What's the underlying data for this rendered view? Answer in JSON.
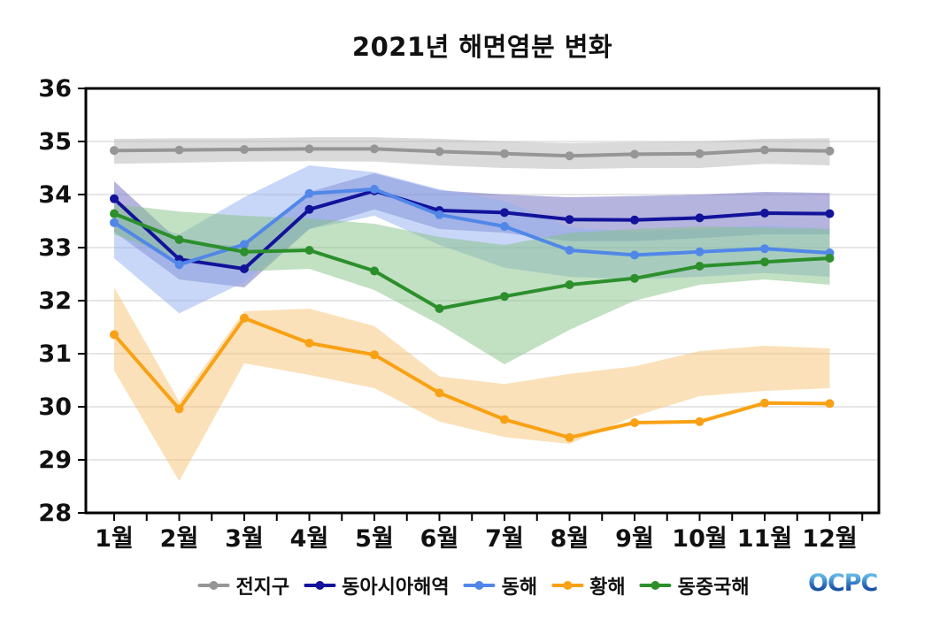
{
  "chart_data": {
    "type": "line",
    "title": "2021년 해면염분 변화",
    "xlabel": "",
    "ylabel": "",
    "ylim": [
      28,
      36
    ],
    "y_ticks": [
      36,
      35,
      34,
      33,
      32,
      31,
      30,
      29,
      28
    ],
    "grid": true,
    "legend_position": "bottom",
    "categories": [
      "1월",
      "2월",
      "3월",
      "4월",
      "5월",
      "6월",
      "7월",
      "8월",
      "9월",
      "10월",
      "11월",
      "12월"
    ],
    "series": [
      {
        "name": "전지구",
        "key": "global",
        "color": "#969696",
        "band_color": "#b5b5b5",
        "values": [
          34.83,
          34.84,
          34.85,
          34.86,
          34.86,
          34.81,
          34.77,
          34.73,
          34.76,
          34.77,
          34.84,
          34.82
        ],
        "band_upper": [
          35.05,
          35.06,
          35.06,
          35.08,
          35.08,
          35.05,
          35.0,
          34.97,
          34.99,
          35.0,
          35.05,
          35.06
        ],
        "band_lower": [
          34.58,
          34.6,
          34.62,
          34.63,
          34.62,
          34.55,
          34.5,
          34.48,
          34.5,
          34.5,
          34.58,
          34.55
        ]
      },
      {
        "name": "동아시아해역",
        "key": "east-asia-seas",
        "color": "#12129b",
        "band_color": "#6a6abd",
        "values": [
          33.92,
          32.78,
          32.6,
          33.72,
          34.07,
          33.7,
          33.66,
          33.53,
          33.52,
          33.56,
          33.65,
          33.64
        ],
        "band_upper": [
          34.25,
          33.12,
          33.02,
          34.05,
          34.4,
          34.08,
          34.0,
          33.95,
          33.97,
          34.0,
          34.05,
          34.03
        ],
        "band_lower": [
          33.3,
          32.4,
          32.25,
          33.35,
          33.72,
          33.35,
          33.28,
          33.12,
          33.12,
          33.18,
          33.25,
          33.25
        ]
      },
      {
        "name": "동해",
        "key": "east-sea",
        "color": "#5187e8",
        "band_color": "#92aff0",
        "values": [
          33.47,
          32.68,
          33.06,
          34.02,
          34.1,
          33.62,
          33.4,
          32.95,
          32.86,
          32.92,
          32.98,
          32.9
        ],
        "band_upper": [
          33.62,
          33.25,
          33.95,
          34.55,
          34.42,
          34.1,
          33.88,
          33.38,
          33.3,
          33.35,
          33.42,
          33.35
        ],
        "band_lower": [
          32.8,
          31.76,
          32.35,
          33.35,
          33.6,
          33.05,
          32.62,
          32.45,
          32.4,
          32.45,
          32.52,
          32.45
        ]
      },
      {
        "name": "황해",
        "key": "yellow-sea",
        "color": "#f9a114",
        "band_color": "#f8c474",
        "values": [
          31.36,
          29.96,
          31.67,
          31.2,
          30.98,
          30.26,
          29.76,
          29.42,
          29.7,
          29.72,
          30.07,
          30.06
        ],
        "band_upper": [
          32.25,
          30.1,
          31.8,
          31.85,
          31.52,
          30.57,
          30.43,
          30.62,
          30.76,
          31.05,
          31.15,
          31.1
        ],
        "band_lower": [
          30.68,
          28.6,
          30.82,
          30.6,
          30.35,
          29.72,
          29.43,
          29.3,
          29.82,
          30.2,
          30.3,
          30.35
        ]
      },
      {
        "name": "동중국해",
        "key": "east-china-sea",
        "color": "#2c8f2c",
        "band_color": "#85c285",
        "values": [
          33.64,
          33.15,
          32.92,
          32.95,
          32.56,
          31.85,
          32.08,
          32.3,
          32.42,
          32.65,
          32.73,
          32.8
        ],
        "band_upper": [
          33.82,
          33.68,
          33.6,
          33.55,
          33.45,
          33.2,
          33.05,
          33.28,
          33.35,
          33.4,
          33.38,
          33.35
        ],
        "band_lower": [
          33.25,
          32.8,
          32.55,
          32.6,
          32.2,
          31.55,
          30.8,
          31.45,
          32.0,
          32.3,
          32.4,
          32.3
        ]
      }
    ]
  },
  "legend": {
    "items": [
      "전지구",
      "동아시아해역",
      "동해",
      "황해",
      "동중국해"
    ]
  },
  "logo": {
    "text": "OCPC"
  }
}
